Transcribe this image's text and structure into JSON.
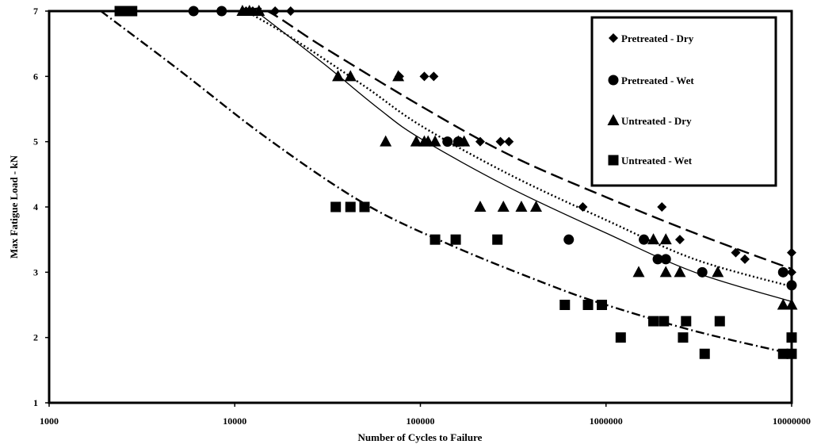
{
  "chart_data": {
    "type": "scatter",
    "title": "",
    "xlabel": "Number of Cycles to Failure",
    "ylabel": "Max Fatigue Load - kN",
    "xscale": "log",
    "xlim": [
      1000,
      10000000
    ],
    "ylim": [
      1,
      7
    ],
    "x_ticks": [
      "1000",
      "10000",
      "100000",
      "1000000",
      "10000000"
    ],
    "y_ticks": [
      "1",
      "2",
      "3",
      "4",
      "5",
      "6",
      "7"
    ],
    "grid": false,
    "legend_position": "top-right",
    "series": [
      {
        "name": "Pretreated - Dry",
        "marker": "diamond",
        "color": "#000000",
        "points": [
          [
            11500,
            7
          ],
          [
            12500,
            7
          ],
          [
            16500,
            7
          ],
          [
            20000,
            7
          ],
          [
            77000,
            6
          ],
          [
            105000,
            6
          ],
          [
            118000,
            6
          ],
          [
            165000,
            5
          ],
          [
            210000,
            5
          ],
          [
            270000,
            5
          ],
          [
            300000,
            5
          ],
          [
            750000,
            4
          ],
          [
            2000000,
            4
          ],
          [
            2500000,
            3.5
          ],
          [
            5000000,
            3.3
          ],
          [
            5600000,
            3.2
          ],
          [
            10000000,
            3.3
          ],
          [
            10000000,
            3.0
          ]
        ],
        "trend": {
          "style": "long-dash",
          "points": [
            [
              12000,
              7
            ],
            [
              15000,
              7
            ],
            [
              30000,
              6.45
            ],
            [
              100000,
              5.55
            ],
            [
              300000,
              4.8
            ],
            [
              1000000,
              4.15
            ],
            [
              3000000,
              3.6
            ],
            [
              10000000,
              3.05
            ]
          ]
        }
      },
      {
        "name": "Pretreated - Wet",
        "marker": "circle",
        "color": "#000000",
        "points": [
          [
            6000,
            7
          ],
          [
            8500,
            7
          ],
          [
            140000,
            5
          ],
          [
            160000,
            5
          ],
          [
            630000,
            3.5
          ],
          [
            1600000,
            3.5
          ],
          [
            1900000,
            3.2
          ],
          [
            2100000,
            3.2
          ],
          [
            3300000,
            3.0
          ],
          [
            9000000,
            3.0
          ],
          [
            10000000,
            2.8
          ]
        ],
        "trend": {
          "style": "dotted",
          "points": [
            [
              11500,
              7
            ],
            [
              20000,
              6.6
            ],
            [
              50000,
              5.85
            ],
            [
              100000,
              5.25
            ],
            [
              300000,
              4.5
            ],
            [
              1000000,
              3.8
            ],
            [
              3000000,
              3.2
            ],
            [
              10000000,
              2.78
            ]
          ]
        }
      },
      {
        "name": "Untreated - Dry",
        "marker": "triangle",
        "color": "#000000",
        "points": [
          [
            11000,
            7
          ],
          [
            12000,
            7
          ],
          [
            13500,
            7
          ],
          [
            36000,
            6
          ],
          [
            42000,
            6
          ],
          [
            76000,
            6
          ],
          [
            65000,
            5
          ],
          [
            95000,
            5
          ],
          [
            105000,
            5
          ],
          [
            110000,
            5
          ],
          [
            120000,
            5
          ],
          [
            160000,
            5
          ],
          [
            172000,
            5
          ],
          [
            210000,
            4
          ],
          [
            280000,
            4
          ],
          [
            350000,
            4
          ],
          [
            420000,
            4
          ],
          [
            1500000,
            3
          ],
          [
            1800000,
            3.5
          ],
          [
            2100000,
            3.5
          ],
          [
            2100000,
            3
          ],
          [
            2500000,
            3
          ],
          [
            4000000,
            3
          ],
          [
            9000000,
            2.5
          ],
          [
            10000000,
            2.5
          ]
        ],
        "trend": {
          "style": "solid",
          "points": [
            [
              13000,
              7
            ],
            [
              30000,
              6.2
            ],
            [
              60000,
              5.5
            ],
            [
              100000,
              5.05
            ],
            [
              300000,
              4.3
            ],
            [
              1000000,
              3.6
            ],
            [
              3000000,
              3.0
            ],
            [
              10000000,
              2.55
            ]
          ]
        }
      },
      {
        "name": "Untreated - Wet",
        "marker": "square",
        "color": "#000000",
        "points": [
          [
            2400,
            7
          ],
          [
            2500,
            7
          ],
          [
            2800,
            7
          ],
          [
            35000,
            4
          ],
          [
            42000,
            4
          ],
          [
            50000,
            4
          ],
          [
            120000,
            3.5
          ],
          [
            155000,
            3.5
          ],
          [
            260000,
            3.5
          ],
          [
            600000,
            2.5
          ],
          [
            800000,
            2.5
          ],
          [
            950000,
            2.5
          ],
          [
            1200000,
            2
          ],
          [
            1800000,
            2.25
          ],
          [
            2050000,
            2.25
          ],
          [
            2700000,
            2.25
          ],
          [
            2600000,
            2
          ],
          [
            3400000,
            1.75
          ],
          [
            4100000,
            2.25
          ],
          [
            9000000,
            1.75
          ],
          [
            10000000,
            1.75
          ],
          [
            10000000,
            2
          ]
        ],
        "trend": {
          "style": "dash-dot",
          "points": [
            [
              1900,
              7
            ],
            [
              5000,
              6.1
            ],
            [
              15000,
              5.05
            ],
            [
              50000,
              4.05
            ],
            [
              150000,
              3.4
            ],
            [
              500000,
              2.8
            ],
            [
              1000000,
              2.5
            ],
            [
              3000000,
              2.1
            ],
            [
              10000000,
              1.75
            ]
          ]
        }
      }
    ]
  }
}
